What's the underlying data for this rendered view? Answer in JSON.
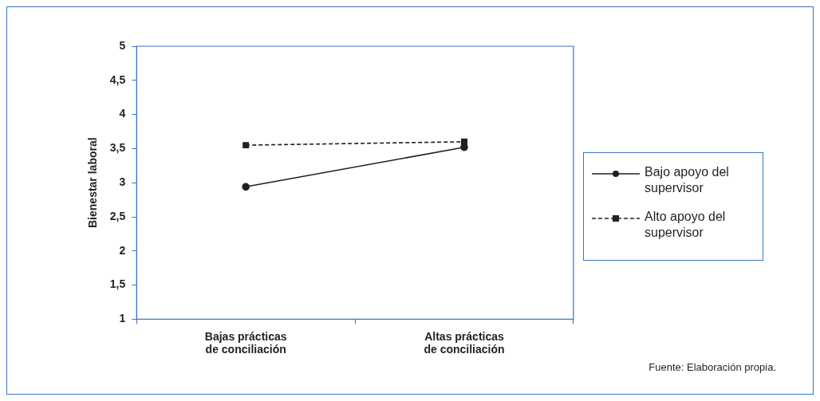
{
  "chart_data": {
    "type": "line",
    "categories": [
      "Bajas prácticas de conciliación",
      "Altas prácticas de conciliación"
    ],
    "ylabel": "Bienestar laboral",
    "series": [
      {
        "name": "Bajo apoyo del supervisor",
        "color": "#231f20",
        "values": [
          2.94,
          3.52
        ],
        "marker": "circle",
        "line_style": "solid"
      },
      {
        "name": "Alto apoyo del supervisor",
        "color": "#231f20",
        "values": [
          3.55,
          3.6
        ],
        "marker": "square",
        "line_style": "dashed"
      }
    ],
    "ylim": [
      1,
      5
    ],
    "yticks": [
      1,
      {
        "value": 1.5,
        "label": "1,5"
      },
      2,
      {
        "value": 2.5,
        "label": "2,5"
      },
      3,
      {
        "value": 3.5,
        "label": "3,5"
      },
      4,
      {
        "value": 4.5,
        "label": "4,5"
      },
      5
    ],
    "grid": false,
    "legend": "right",
    "annotations": [
      "Fuente: Elaboración propia."
    ]
  }
}
